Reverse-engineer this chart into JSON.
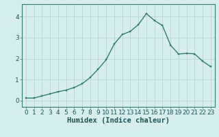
{
  "x": [
    0,
    1,
    2,
    3,
    4,
    5,
    6,
    7,
    8,
    9,
    10,
    11,
    12,
    13,
    14,
    15,
    16,
    17,
    18,
    19,
    20,
    21,
    22,
    23
  ],
  "y": [
    0.12,
    0.12,
    0.22,
    0.32,
    0.42,
    0.5,
    0.62,
    0.8,
    1.1,
    1.5,
    1.95,
    2.7,
    3.15,
    3.3,
    3.62,
    4.15,
    3.82,
    3.58,
    2.65,
    2.22,
    2.25,
    2.23,
    1.88,
    1.62
  ],
  "line_color": "#2e7d6e",
  "marker": "s",
  "marker_size": 2.0,
  "bg_color": "#d6eeee",
  "grid_color": "#b8d4d4",
  "xlabel": "Humidex (Indice chaleur)",
  "xlim": [
    -0.5,
    23.5
  ],
  "ylim": [
    -0.3,
    4.6
  ],
  "yticks": [
    0,
    1,
    2,
    3,
    4
  ],
  "xticks": [
    0,
    1,
    2,
    3,
    4,
    5,
    6,
    7,
    8,
    9,
    10,
    11,
    12,
    13,
    14,
    15,
    16,
    17,
    18,
    19,
    20,
    21,
    22,
    23
  ],
  "xlabel_fontsize": 7.5,
  "tick_fontsize": 6.5,
  "line_width": 1.0
}
